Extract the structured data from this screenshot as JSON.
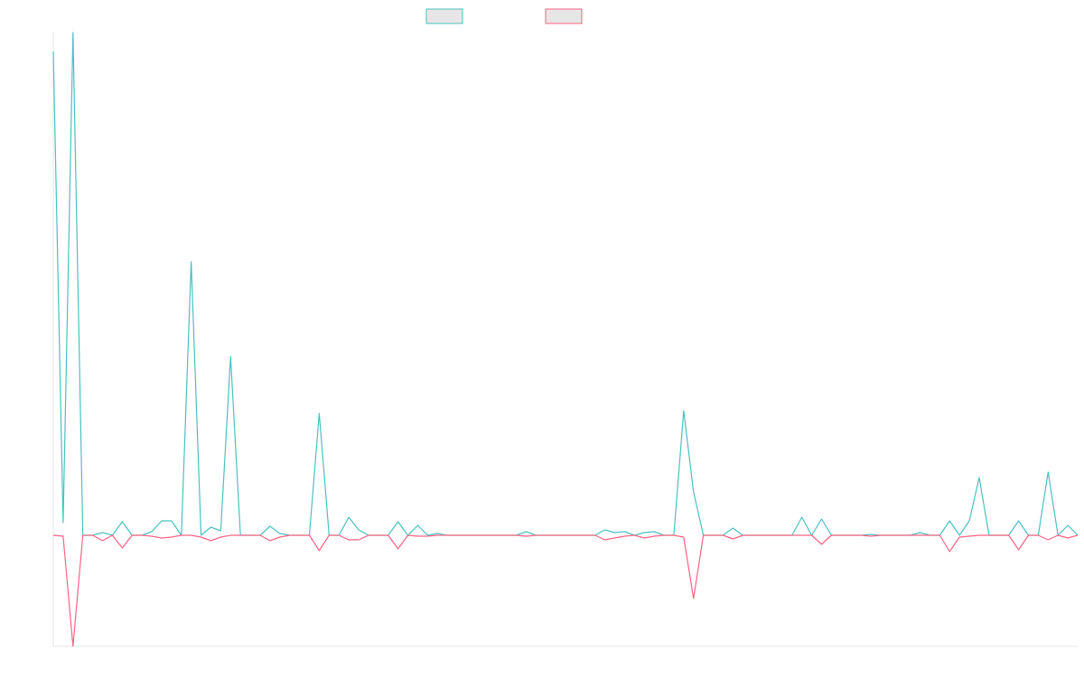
{
  "chart_data": {
    "type": "line",
    "categories": [
      null,
      null,
      null,
      null,
      null,
      null,
      null,
      null,
      null,
      null,
      null,
      null,
      null,
      null,
      null,
      null,
      null,
      null,
      null,
      null,
      null,
      null,
      null,
      null,
      null,
      null,
      null,
      null,
      null,
      null,
      null,
      null,
      null,
      null,
      null,
      null,
      null,
      null,
      null,
      null,
      null,
      null,
      null,
      null,
      null,
      null,
      null,
      null,
      null,
      null,
      null,
      null,
      null,
      null,
      null,
      null,
      null,
      null,
      null,
      null,
      null,
      null,
      null,
      null,
      null,
      null,
      null,
      null,
      null,
      null,
      null,
      null,
      null,
      null,
      null,
      null,
      null,
      null,
      null,
      null,
      null,
      null,
      null,
      null,
      null,
      null,
      null,
      null,
      null,
      null,
      null,
      null,
      null,
      null,
      null,
      null,
      null,
      null,
      null,
      null,
      null,
      null,
      null,
      null,
      null
    ],
    "series": [
      {
        "color": "#4bc0c0",
        "values": [
          536,
          14,
          557,
          0,
          0,
          3,
          0,
          15,
          0,
          0,
          4,
          16,
          16,
          0,
          303,
          0,
          9,
          5,
          198,
          0,
          0,
          0,
          10,
          2,
          0,
          0,
          0,
          135,
          0,
          0,
          20,
          6,
          0,
          0,
          0,
          15,
          0,
          11,
          0,
          2,
          0,
          0,
          0,
          0,
          0,
          0,
          0,
          0,
          4,
          0,
          0,
          0,
          0,
          0,
          0,
          0,
          6,
          3,
          4,
          0,
          3,
          4,
          0,
          0,
          138,
          48,
          0,
          0,
          0,
          8,
          0,
          0,
          0,
          0,
          0,
          0,
          20,
          0,
          18,
          0,
          0,
          0,
          0,
          1,
          0,
          0,
          0,
          0,
          3,
          0,
          0,
          16,
          0,
          16,
          64,
          0,
          0,
          0,
          16,
          0,
          0,
          70,
          0,
          11,
          0
        ]
      },
      {
        "color": "#ff6384",
        "values": [
          0,
          -1,
          -123,
          0,
          0,
          -6,
          0,
          -14,
          0,
          0,
          -1,
          -3,
          -2,
          0,
          0,
          -2,
          -6,
          -2,
          0,
          0,
          0,
          0,
          -6,
          -2,
          0,
          0,
          0,
          -17,
          0,
          0,
          -5,
          -5,
          0,
          0,
          0,
          -15,
          0,
          -1,
          -1,
          0,
          0,
          0,
          0,
          0,
          0,
          0,
          0,
          0,
          -1,
          0,
          0,
          0,
          0,
          0,
          0,
          0,
          -5,
          -3,
          -1,
          0,
          -3,
          -1,
          0,
          0,
          -2,
          -70,
          0,
          0,
          0,
          -4,
          0,
          0,
          0,
          0,
          0,
          0,
          0,
          0,
          -10,
          0,
          0,
          0,
          0,
          -1,
          0,
          0,
          0,
          0,
          0,
          0,
          0,
          -18,
          -2,
          -1,
          0,
          0,
          0,
          0,
          -16,
          0,
          0,
          -5,
          0,
          -3,
          0
        ]
      }
    ],
    "ylim": [
      -123,
      557
    ],
    "grid": false,
    "legend": "top"
  }
}
